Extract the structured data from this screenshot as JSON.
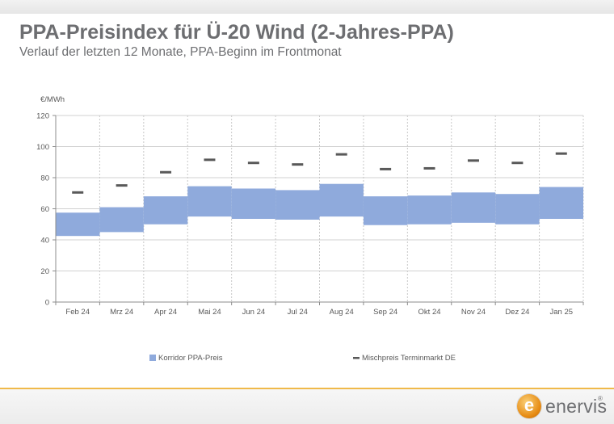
{
  "header": {
    "title": "PPA-Preisindex für Ü-20 Wind (2-Jahres-PPA)",
    "subtitle": "Verlauf der letzten 12 Monate, PPA-Beginn im Frontmonat"
  },
  "brand": {
    "logo_text": "enervis",
    "logo_letter": "e",
    "logo_mark": "®",
    "accent_color": "#f0b94a"
  },
  "chart_data": {
    "type": "bar",
    "title": "",
    "ylabel": "€/MWh",
    "xlabel": "",
    "ylim": [
      0,
      120
    ],
    "yticks": [
      0,
      20,
      40,
      60,
      80,
      100,
      120
    ],
    "grid": true,
    "legend_position": "bottom",
    "categories": [
      "Feb 24",
      "Mrz 24",
      "Apr 24",
      "Mai 24",
      "Jun 24",
      "Jul 24",
      "Aug 24",
      "Sep 24",
      "Okt 24",
      "Nov 24",
      "Dez 24",
      "Jan 25"
    ],
    "series": [
      {
        "name": "Korridor PPA-Preis",
        "kind": "range",
        "color": "#8faadc",
        "low": [
          42.5,
          45,
          50,
          55,
          53.5,
          53,
          55,
          49.5,
          50,
          51,
          50,
          53.5
        ],
        "high": [
          57.5,
          61,
          68,
          74.5,
          73,
          72,
          76,
          68,
          68.5,
          70.5,
          69.5,
          74
        ]
      },
      {
        "name": "Mischpreis Terminmarkt DE",
        "kind": "marker",
        "color": "#595959",
        "values": [
          70.5,
          75,
          83.5,
          91.5,
          89.5,
          88.5,
          95,
          85.5,
          86,
          91,
          89.5,
          95.5
        ]
      }
    ]
  }
}
